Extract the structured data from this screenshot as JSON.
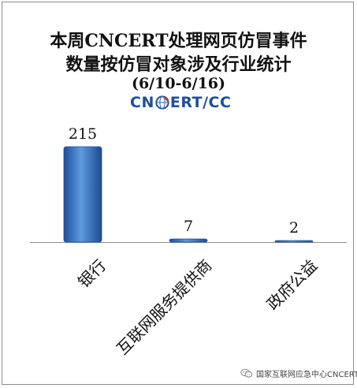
{
  "title": {
    "line1": "本周CNCERT处理网页仿冒事件",
    "line2": "数量按仿冒对象涉及行业统计",
    "line3": "(6/10-6/16)"
  },
  "logo": {
    "text_before": "CN",
    "text_after": "ERT/CC"
  },
  "watermark": {
    "text": "国家互联网应急中心CNCERT"
  },
  "chart_data": {
    "type": "bar",
    "categories": [
      "银行",
      "互联网服务提供商",
      "政府公益"
    ],
    "values": [
      215,
      7,
      2
    ],
    "title": "本周CNCERT处理网页仿冒事件数量按仿冒对象涉及行业统计 (6/10-6/16)",
    "xlabel": "",
    "ylabel": "",
    "ylim": [
      0,
      215
    ],
    "grid": false,
    "legend": "none",
    "bar_color": "#3a78c9",
    "bar_edge_color": "#1f4f9a"
  }
}
